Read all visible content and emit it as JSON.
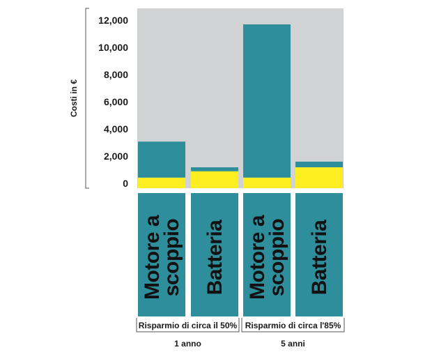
{
  "chart_data": {
    "type": "bar",
    "stacked": true,
    "ylabel": "Costi in €",
    "ylim": [
      0,
      13000
    ],
    "yticks": [
      "12,000",
      "10,000",
      "8,000",
      "6,000",
      "4,000",
      "2,000",
      "0"
    ],
    "ytick_values": [
      12000,
      10000,
      8000,
      6000,
      4000,
      2000,
      0
    ],
    "categories": [
      [
        "Motore a",
        "scoppio"
      ],
      [
        "Batteria"
      ],
      [
        "Motore a",
        "scoppio"
      ],
      [
        "Batteria"
      ]
    ],
    "series": [
      {
        "values": [
          750,
          1200,
          750,
          1480
        ]
      },
      {
        "values": [
          2550,
          280,
          10850,
          400
        ]
      }
    ],
    "savings": [
      "Risparmio di circa il 50%",
      "Risparmio di circa l'85%"
    ],
    "groups": [
      "1 anno",
      "5 anni"
    ]
  },
  "colors": {
    "background": "#d1d2d4",
    "bottom_series": "#fcee21",
    "top_series": "#2e8e9c",
    "axis": "#555555"
  }
}
